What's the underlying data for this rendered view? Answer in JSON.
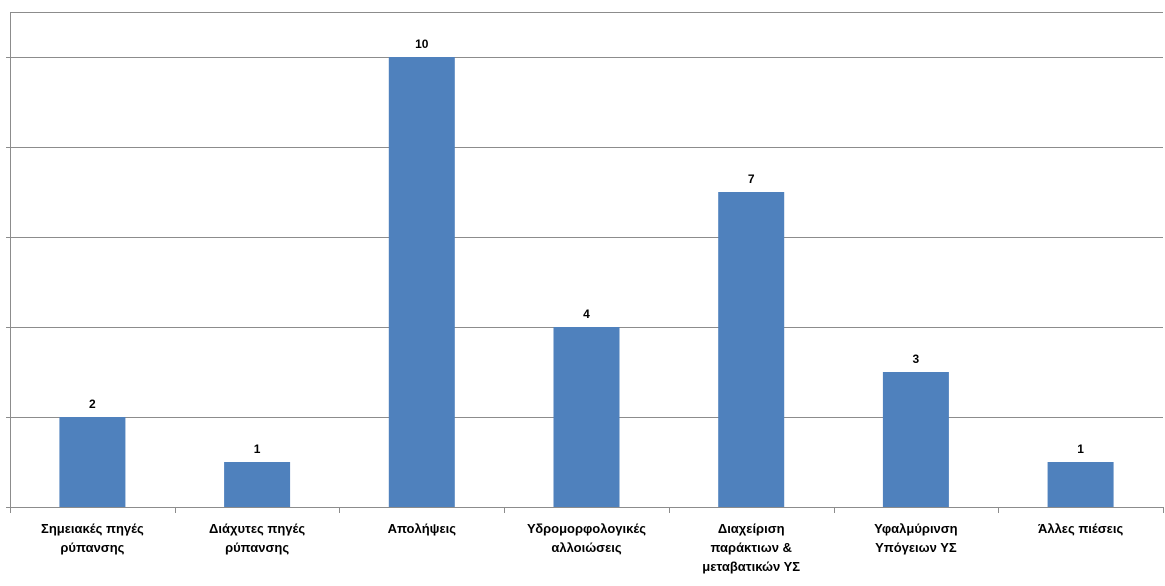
{
  "chart_data": {
    "type": "bar",
    "categories": [
      [
        "Σημειακές πηγές",
        "ρύπανσης"
      ],
      [
        "Διάχυτες πηγές",
        "ρύπανσης"
      ],
      [
        "Απολήψεις"
      ],
      [
        "Υδρομορφολογικές",
        "αλλοιώσεις"
      ],
      [
        "Διαχείριση",
        "παράκτιων &",
        "μεταβατικών ΥΣ"
      ],
      [
        "Υφαλμύρινση",
        "Υπόγειων ΥΣ"
      ],
      [
        "Άλλες πιέσεις"
      ]
    ],
    "values": [
      2,
      1,
      10,
      4,
      7,
      3,
      1
    ],
    "data_labels": [
      "2",
      "1",
      "10",
      "4",
      "7",
      "3",
      "1"
    ],
    "ylim": [
      0,
      11
    ],
    "gridlines_at": [
      2,
      4,
      6,
      8,
      10
    ],
    "grid": true,
    "legend": "none",
    "bar_color": "#4f81bd",
    "title": "",
    "xlabel": "",
    "ylabel": ""
  }
}
